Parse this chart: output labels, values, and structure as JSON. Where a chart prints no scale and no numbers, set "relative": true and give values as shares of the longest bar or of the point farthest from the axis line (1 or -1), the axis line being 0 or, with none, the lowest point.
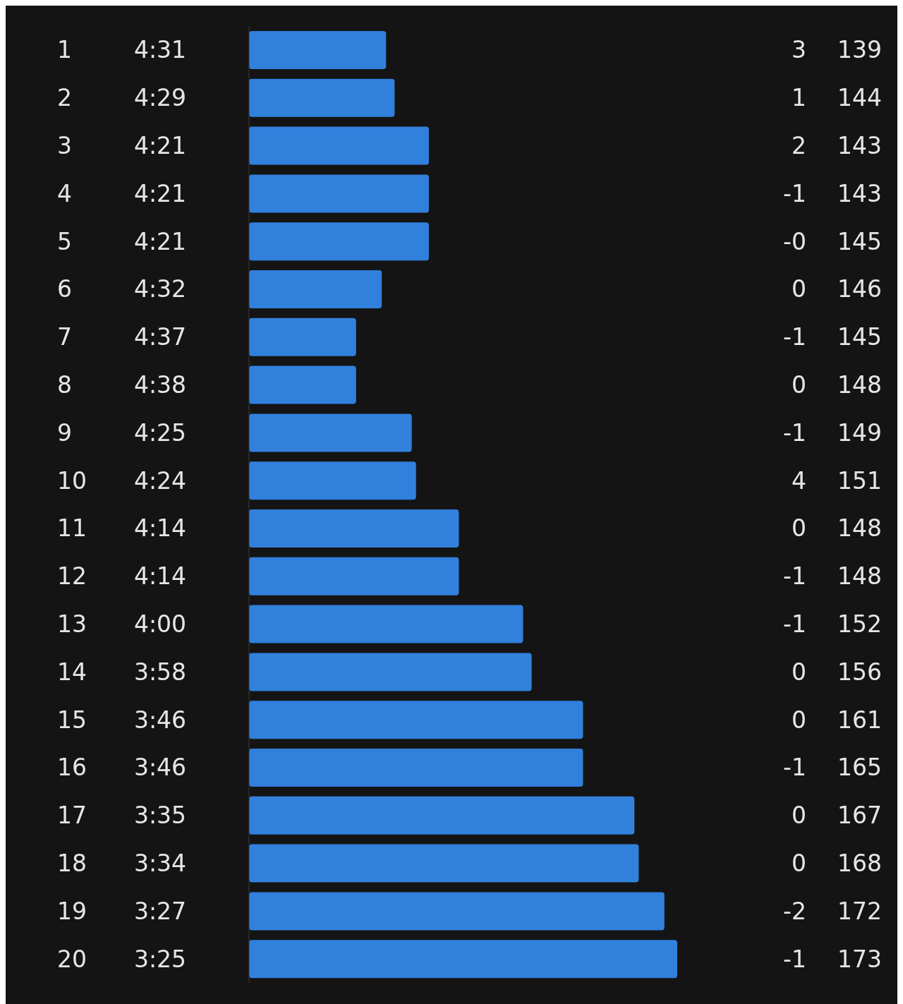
{
  "chart_data": {
    "type": "bar",
    "orientation": "horizontal",
    "relative": true,
    "categories": [
      "1",
      "2",
      "3",
      "4",
      "5",
      "6",
      "7",
      "8",
      "9",
      "10",
      "11",
      "12",
      "13",
      "14",
      "15",
      "16",
      "17",
      "18",
      "19",
      "20"
    ],
    "values": [
      0.32,
      0.34,
      0.42,
      0.42,
      0.42,
      0.31,
      0.25,
      0.25,
      0.38,
      0.39,
      0.49,
      0.49,
      0.64,
      0.66,
      0.78,
      0.78,
      0.9,
      0.91,
      0.97,
      1
    ],
    "color": "#3180dc",
    "annotations": [
      "4:31",
      "3",
      "139",
      "4:29",
      "1",
      "144",
      "4:21",
      "2",
      "143",
      "4:21",
      "-1",
      "143",
      "4:21",
      "-0",
      "145",
      "4:32",
      "0",
      "146",
      "4:37",
      "-1",
      "145",
      "4:38",
      "0",
      "148",
      "4:25",
      "-1",
      "149",
      "4:24",
      "4",
      "151",
      "4:14",
      "0",
      "148",
      "4:14",
      "-1",
      "148",
      "4:00",
      "-1",
      "152",
      "3:58",
      "0",
      "156",
      "3:46",
      "0",
      "161",
      "3:46",
      "-1",
      "165",
      "3:35",
      "0",
      "167",
      "3:34",
      "0",
      "168",
      "3:27",
      "-2",
      "172",
      "3:25",
      "-1",
      "173"
    ]
  }
}
